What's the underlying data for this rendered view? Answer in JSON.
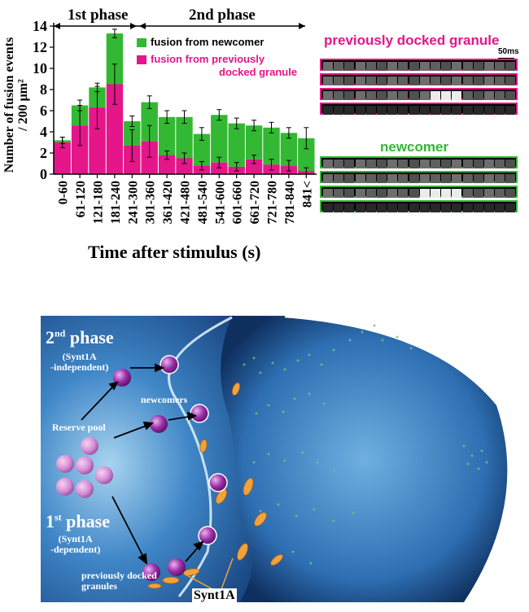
{
  "chart_data": {
    "type": "bar",
    "stacked": true,
    "categories": [
      "0-60",
      "61-120",
      "121-180",
      "181-240",
      "241-300",
      "301-360",
      "361-420",
      "421-480",
      "481-540",
      "541-600",
      "601-660",
      "661-720",
      "721-780",
      "781-840",
      "841<"
    ],
    "series": [
      {
        "name": "fusion from previously docked granule",
        "color": "#e5158a",
        "values": [
          3.0,
          4.6,
          6.3,
          8.5,
          2.7,
          3.1,
          1.8,
          1.5,
          0.8,
          1.1,
          0.7,
          1.4,
          0.9,
          0.8,
          0.3
        ],
        "errors": [
          0.5,
          1.9,
          2.0,
          1.9,
          1.5,
          1.5,
          0.4,
          0.5,
          0.4,
          0.5,
          0.4,
          0.4,
          0.5,
          0.5,
          0.3
        ]
      },
      {
        "name": "fusion from newcomer",
        "color": "#33b833",
        "values": [
          0.2,
          1.9,
          1.9,
          4.8,
          2.3,
          3.7,
          3.6,
          3.9,
          3.0,
          4.5,
          4.1,
          3.2,
          3.5,
          3.1,
          3.1
        ],
        "errors": [
          0.3,
          0.5,
          0.4,
          0.4,
          0.5,
          0.6,
          0.6,
          0.6,
          0.6,
          0.5,
          0.5,
          0.5,
          0.5,
          0.5,
          1.0
        ]
      }
    ],
    "ylim": [
      0,
      14
    ],
    "yticks": [
      0,
      2,
      4,
      6,
      8,
      10,
      12,
      14
    ],
    "ylabel_line1": "Number of fusion events",
    "ylabel_line2": "/ 200  μm²",
    "xlabel": "Time after stimulus (s)",
    "phase1_label": "1st phase",
    "phase2_label": "2nd phase",
    "legend_newcomer": "fusion from newcomer",
    "legend_docked_line1": "fusion from previously",
    "legend_docked_line2": "docked granule",
    "legend_position": "top-right",
    "grid": false
  },
  "panels": {
    "docked_title": "previously docked granule",
    "newcomer_title": "newcomer",
    "scale_bar": "50ms",
    "docked_color": "#e5158a",
    "newcomer_color": "#33b833"
  },
  "illustration": {
    "phase2_title": "2",
    "phase2_sup": "nd",
    "phase2_word": " phase",
    "phase2_sub1": "(Synt1A",
    "phase2_sub2": "-independent)",
    "newcomers": "newcomers",
    "reserve_pool": "Reserve pool",
    "phase1_title": "1",
    "phase1_sup": "st",
    "phase1_word": " phase",
    "phase1_sub1": "(Synt1A",
    "phase1_sub2": "-dependent)",
    "docked_line1": "previously docked",
    "docked_line2": "granules",
    "synt1a": "Synt1A"
  }
}
